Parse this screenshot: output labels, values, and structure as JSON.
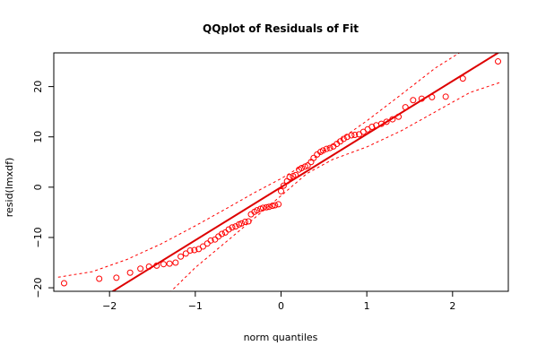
{
  "chart_data": {
    "type": "scatter",
    "title": "QQplot of Residuals of Fit",
    "xlabel": "norm quantiles",
    "ylabel": "resid(lmxdf)",
    "xlim": [
      -2.65,
      2.65
    ],
    "ylim": [
      -20.7,
      26.7
    ],
    "x_ticks": [
      -2,
      -1,
      0,
      1,
      2
    ],
    "x_tick_labels": [
      "−2",
      "−1",
      "0",
      "1",
      "2"
    ],
    "y_ticks": [
      -20,
      -10,
      0,
      10,
      20
    ],
    "y_tick_labels": [
      "−20",
      "−10",
      "0",
      "10",
      "20"
    ],
    "grid": false,
    "colors": {
      "points": "#ff0000",
      "reference_line": "#dd0000",
      "envelope": "#ff0000",
      "axes": "#000000"
    },
    "reference_line": {
      "intercept": 0,
      "slope": 10.55
    },
    "envelope": {
      "upper": [
        [
          -2.6,
          -17.9
        ],
        [
          -2.2,
          -16.8
        ],
        [
          -1.8,
          -14.4
        ],
        [
          -1.4,
          -11.3
        ],
        [
          -1.0,
          -7.7
        ],
        [
          -0.6,
          -3.9
        ],
        [
          -0.3,
          -1.0
        ],
        [
          0.0,
          1.7
        ],
        [
          0.3,
          4.8
        ],
        [
          0.6,
          8.4
        ],
        [
          1.0,
          13.2
        ],
        [
          1.4,
          18.4
        ],
        [
          1.8,
          23.7
        ],
        [
          2.2,
          28.0
        ]
      ],
      "lower": [
        [
          -1.3,
          -21.0
        ],
        [
          -1.0,
          -16.0
        ],
        [
          -0.6,
          -10.3
        ],
        [
          -0.3,
          -6.0
        ],
        [
          0.0,
          -1.7
        ],
        [
          0.3,
          2.7
        ],
        [
          0.6,
          5.5
        ],
        [
          1.0,
          8.0
        ],
        [
          1.4,
          11.2
        ],
        [
          1.8,
          15.0
        ],
        [
          2.2,
          18.8
        ],
        [
          2.55,
          20.8
        ]
      ]
    },
    "series": [
      {
        "points": [
          [
            -2.53,
            -19.1
          ],
          [
            -2.12,
            -18.2
          ],
          [
            -1.92,
            -18.0
          ],
          [
            -1.76,
            -17.0
          ],
          [
            -1.64,
            -16.2
          ],
          [
            -1.54,
            -15.8
          ],
          [
            -1.45,
            -15.6
          ],
          [
            -1.37,
            -15.3
          ],
          [
            -1.3,
            -15.2
          ],
          [
            -1.23,
            -15.0
          ],
          [
            -1.17,
            -13.8
          ],
          [
            -1.11,
            -13.2
          ],
          [
            -1.06,
            -12.6
          ],
          [
            -1.01,
            -12.5
          ],
          [
            -0.96,
            -12.3
          ],
          [
            -0.91,
            -11.8
          ],
          [
            -0.86,
            -11.2
          ],
          [
            -0.82,
            -10.6
          ],
          [
            -0.77,
            -10.4
          ],
          [
            -0.73,
            -9.8
          ],
          [
            -0.69,
            -9.3
          ],
          [
            -0.65,
            -9.0
          ],
          [
            -0.61,
            -8.4
          ],
          [
            -0.57,
            -8.0
          ],
          [
            -0.53,
            -7.8
          ],
          [
            -0.49,
            -7.4
          ],
          [
            -0.46,
            -7.2
          ],
          [
            -0.42,
            -6.9
          ],
          [
            -0.38,
            -6.8
          ],
          [
            -0.35,
            -5.4
          ],
          [
            -0.31,
            -4.9
          ],
          [
            -0.28,
            -4.6
          ],
          [
            -0.24,
            -4.3
          ],
          [
            -0.21,
            -4.1
          ],
          [
            -0.17,
            -4.0
          ],
          [
            -0.14,
            -3.9
          ],
          [
            -0.1,
            -3.7
          ],
          [
            -0.07,
            -3.6
          ],
          [
            -0.03,
            -3.4
          ],
          [
            0.0,
            -0.8
          ],
          [
            0.03,
            0.3
          ],
          [
            0.07,
            1.2
          ],
          [
            0.1,
            2.0
          ],
          [
            0.14,
            2.2
          ],
          [
            0.17,
            2.4
          ],
          [
            0.21,
            3.5
          ],
          [
            0.24,
            3.8
          ],
          [
            0.28,
            4.1
          ],
          [
            0.31,
            4.3
          ],
          [
            0.35,
            5.0
          ],
          [
            0.38,
            5.8
          ],
          [
            0.42,
            6.5
          ],
          [
            0.46,
            7.0
          ],
          [
            0.49,
            7.3
          ],
          [
            0.53,
            7.6
          ],
          [
            0.57,
            7.8
          ],
          [
            0.61,
            8.1
          ],
          [
            0.65,
            8.6
          ],
          [
            0.69,
            9.1
          ],
          [
            0.73,
            9.6
          ],
          [
            0.77,
            10.0
          ],
          [
            0.82,
            10.3
          ],
          [
            0.86,
            10.4
          ],
          [
            0.91,
            10.5
          ],
          [
            0.96,
            11.0
          ],
          [
            1.01,
            11.5
          ],
          [
            1.06,
            12.0
          ],
          [
            1.11,
            12.3
          ],
          [
            1.17,
            12.6
          ],
          [
            1.23,
            13.0
          ],
          [
            1.3,
            13.5
          ],
          [
            1.37,
            14.0
          ],
          [
            1.45,
            15.9
          ],
          [
            1.54,
            17.3
          ],
          [
            1.64,
            17.6
          ],
          [
            1.76,
            17.9
          ],
          [
            1.92,
            18.0
          ],
          [
            2.12,
            21.6
          ],
          [
            2.53,
            25.0
          ]
        ]
      }
    ]
  }
}
